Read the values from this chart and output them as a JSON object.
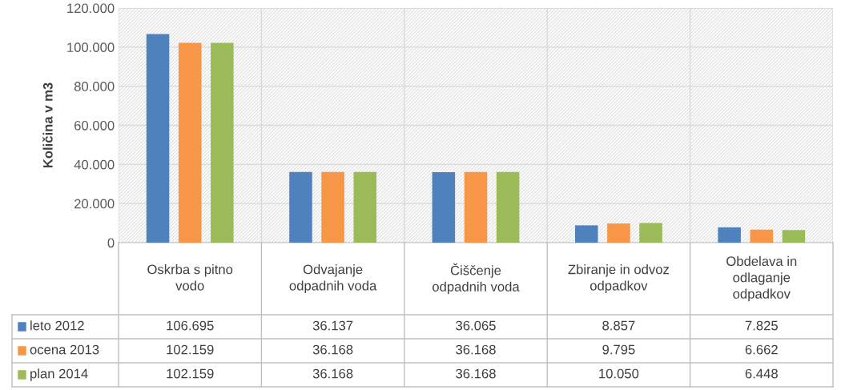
{
  "chart_data": {
    "type": "bar",
    "ylabel": "Količina v m3",
    "categories": [
      "Oskrba s pitno\nvodo",
      "Odvajanje\nodpadnih voda",
      "Čiščenje\nodpadnih voda",
      "Zbiranje in odvoz\nodpadkov",
      "Obdelava in\nodlaganje\nodpadkov"
    ],
    "series": [
      {
        "name": "leto 2012",
        "color": "#4f81bd",
        "values": [
          106695,
          36137,
          36065,
          8857,
          7825
        ],
        "value_labels": [
          "106.695",
          "36.137",
          "36.065",
          "8.857",
          "7.825"
        ]
      },
      {
        "name": "ocena 2013",
        "color": "#f79646",
        "values": [
          102159,
          36168,
          36168,
          9795,
          6662
        ],
        "value_labels": [
          "102.159",
          "36.168",
          "36.168",
          "9.795",
          "6.662"
        ]
      },
      {
        "name": "plan 2014",
        "color": "#9bbb59",
        "values": [
          102159,
          36168,
          36168,
          10050,
          6448
        ],
        "value_labels": [
          "102.159",
          "36.168",
          "36.168",
          "10.050",
          "6.448"
        ]
      }
    ],
    "ylim": [
      0,
      120000
    ],
    "yticks": [
      {
        "value": 0,
        "label": "0"
      },
      {
        "value": 20000,
        "label": "20.000"
      },
      {
        "value": 40000,
        "label": "40.000"
      },
      {
        "value": 60000,
        "label": "60.000"
      },
      {
        "value": 80000,
        "label": "80.000"
      },
      {
        "value": 100000,
        "label": "100.000"
      },
      {
        "value": 120000,
        "label": "120.000"
      }
    ],
    "grid": "y",
    "legend": "bottom"
  }
}
